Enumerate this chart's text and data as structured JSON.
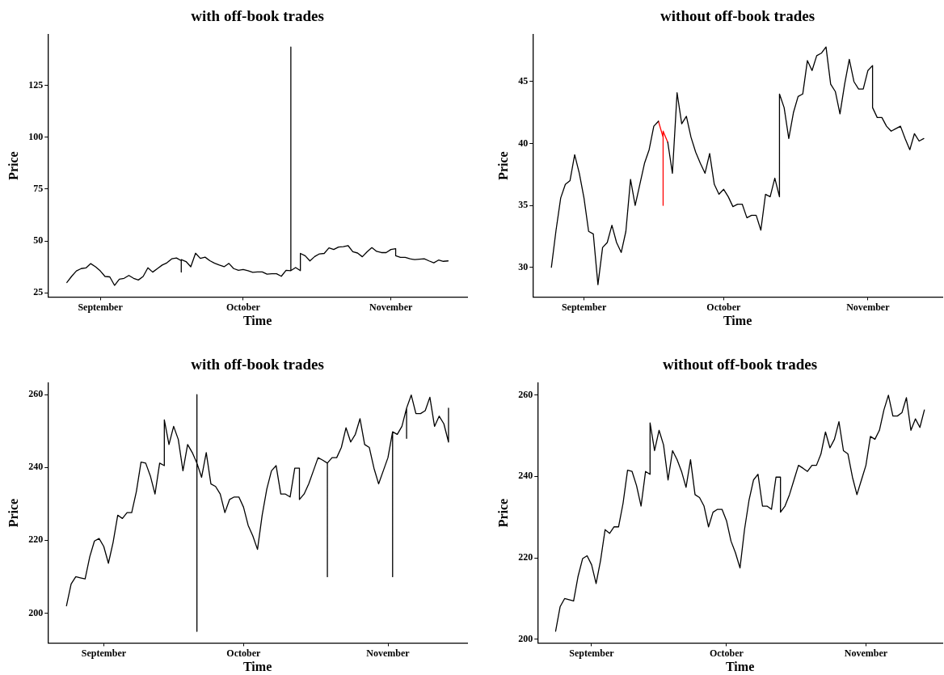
{
  "chart_data": [
    {
      "type": "line",
      "title": "with off-book trades",
      "xlabel": "Time",
      "ylabel": "Price",
      "x": [
        "--08-25",
        "--08-26",
        "--08-27",
        "--08-28",
        "--08-29",
        "--08-30",
        "--08-31",
        "--09-01",
        "--09-02",
        "--09-03",
        "--09-04",
        "--09-05",
        "--09-06",
        "--09-07",
        "--09-08",
        "--09-09",
        "--09-10",
        "--09-11",
        "--09-12",
        "--09-13",
        "--09-14",
        "--09-15",
        "--09-16",
        "--09-17",
        "--09-18",
        "--09-18",
        "--09-18",
        "--09-19",
        "--09-20",
        "--09-21",
        "--09-22",
        "--09-23",
        "--09-24",
        "--09-25",
        "--09-26",
        "--09-27",
        "--09-28",
        "--09-29",
        "--09-30",
        "--10-01",
        "--10-02",
        "--10-03",
        "--10-04",
        "--10-05",
        "--10-06",
        "--10-07",
        "--10-08",
        "--10-09",
        "--10-10",
        "--10-11",
        "--10-11",
        "--10-11",
        "--10-12",
        "--10-13",
        "--10-13",
        "--10-14",
        "--10-15",
        "--10-16",
        "--10-17",
        "--10-18",
        "--10-19",
        "--10-20",
        "--10-21",
        "--10-22",
        "--10-23",
        "--10-24",
        "--10-25",
        "--10-26",
        "--10-27",
        "--10-28",
        "--10-29",
        "--10-30",
        "--10-31",
        "--11-01",
        "--11-02",
        "--11-02",
        "--11-03",
        "--11-04",
        "--11-05",
        "--11-06",
        "--11-07",
        "--11-08",
        "--11-09",
        "--11-10",
        "--11-11",
        "--11-12",
        "--11-13"
      ],
      "series": [
        {
          "color": "#000000",
          "values": [
            30.0,
            33.0,
            35.6,
            36.7,
            37.0,
            39.1,
            37.6,
            35.6,
            32.9,
            32.7,
            28.6,
            31.6,
            32.0,
            33.4,
            32.0,
            31.2,
            32.9,
            37.1,
            35.0,
            36.7,
            38.4,
            39.5,
            41.4,
            41.8,
            40.5,
            35.0,
            41.0,
            40.1,
            37.6,
            44.1,
            41.6,
            42.2,
            40.5,
            39.3,
            38.4,
            37.6,
            39.2,
            36.7,
            35.9,
            36.3,
            35.7,
            34.9,
            35.1,
            35.1,
            34.0,
            34.2,
            34.2,
            33.0,
            35.9,
            35.7,
            143.5,
            35.7,
            37.2,
            35.7,
            44.0,
            42.9,
            40.4,
            42.5,
            43.8,
            44.0,
            46.7,
            45.9,
            47.1,
            47.3,
            47.8,
            44.8,
            44.2,
            42.4,
            44.8,
            46.8,
            45.0,
            44.4,
            44.4,
            45.9,
            46.3,
            42.9,
            42.1,
            42.1,
            41.4,
            41.0,
            41.2,
            41.4,
            40.4,
            39.5,
            40.8,
            40.2,
            40.4
          ]
        }
      ],
      "xlim": [
        "--08-21",
        "--11-17"
      ],
      "xticks": [
        {
          "value": "--09-01",
          "label": "September"
        },
        {
          "value": "--10-01",
          "label": "October"
        },
        {
          "value": "--11-01",
          "label": "November"
        }
      ],
      "ylim": [
        23,
        149.5
      ],
      "yticks": [
        25,
        50,
        75,
        100,
        125
      ]
    },
    {
      "type": "line",
      "title": "without off-book trades",
      "xlabel": "Time",
      "ylabel": "Price",
      "x": [
        "--08-25",
        "--08-26",
        "--08-27",
        "--08-28",
        "--08-29",
        "--08-30",
        "--08-31",
        "--09-01",
        "--09-02",
        "--09-03",
        "--09-04",
        "--09-05",
        "--09-06",
        "--09-07",
        "--09-08",
        "--09-09",
        "--09-10",
        "--09-11",
        "--09-12",
        "--09-13",
        "--09-14",
        "--09-15",
        "--09-16",
        "--09-17",
        "--09-18",
        "--09-19",
        "--09-20",
        "--09-21",
        "--09-22",
        "--09-23",
        "--09-24",
        "--09-25",
        "--09-26",
        "--09-27",
        "--09-28",
        "--09-29",
        "--09-30",
        "--10-01",
        "--10-02",
        "--10-03",
        "--10-04",
        "--10-05",
        "--10-06",
        "--10-07",
        "--10-08",
        "--10-09",
        "--10-10",
        "--10-11",
        "--10-12",
        "--10-13",
        "--10-13",
        "--10-14",
        "--10-15",
        "--10-16",
        "--10-17",
        "--10-18",
        "--10-19",
        "--10-20",
        "--10-21",
        "--10-22",
        "--10-23",
        "--10-24",
        "--10-25",
        "--10-26",
        "--10-27",
        "--10-28",
        "--10-29",
        "--10-30",
        "--10-31",
        "--11-01",
        "--11-02",
        "--11-02",
        "--11-03",
        "--11-04",
        "--11-05",
        "--11-06",
        "--11-07",
        "--11-08",
        "--11-09",
        "--11-10",
        "--11-11",
        "--11-12",
        "--11-13"
      ],
      "series": [
        {
          "color": "#000000",
          "values": [
            30.0,
            33.0,
            35.6,
            36.7,
            37.0,
            39.1,
            37.6,
            35.6,
            32.9,
            32.7,
            28.6,
            31.6,
            32.0,
            33.4,
            32.0,
            31.2,
            32.9,
            37.1,
            35.0,
            36.7,
            38.4,
            39.5,
            41.4,
            41.8,
            null,
            40.1,
            37.6,
            44.1,
            41.6,
            42.2,
            40.5,
            39.3,
            38.4,
            37.6,
            39.2,
            36.7,
            35.9,
            36.3,
            35.7,
            34.9,
            35.1,
            35.1,
            34.0,
            34.2,
            34.2,
            33.0,
            35.9,
            35.7,
            37.2,
            35.7,
            44.0,
            42.9,
            40.4,
            42.5,
            43.8,
            44.0,
            46.7,
            45.9,
            47.1,
            47.3,
            47.8,
            44.8,
            44.2,
            42.4,
            44.8,
            46.8,
            45.0,
            44.4,
            44.4,
            45.9,
            46.3,
            42.9,
            42.1,
            42.1,
            41.4,
            41.0,
            41.2,
            41.4,
            40.4,
            39.5,
            40.8,
            40.2,
            40.4
          ]
        },
        {
          "color": "#ff0000",
          "x": [
            "--09-17",
            "--09-18",
            "--09-18",
            "--09-18",
            "--09-19"
          ],
          "values": [
            41.8,
            40.5,
            35.0,
            41.0,
            40.1
          ]
        }
      ],
      "xlim": [
        "--08-21",
        "--11-17"
      ],
      "xticks": [
        {
          "value": "--09-01",
          "label": "September"
        },
        {
          "value": "--10-01",
          "label": "October"
        },
        {
          "value": "--11-01",
          "label": "November"
        }
      ],
      "ylim": [
        27.6,
        48.8
      ],
      "yticks": [
        30,
        35,
        40,
        45
      ]
    },
    {
      "type": "line",
      "title": "with off-book trades",
      "xlabel": "Time",
      "ylabel": "Price",
      "x": [
        "--08-24",
        "--08-25",
        "--08-26",
        "--08-27",
        "--08-28",
        "--08-29",
        "--08-30",
        "--08-31",
        "--09-01",
        "--09-02",
        "--09-03",
        "--09-04",
        "--09-05",
        "--09-06",
        "--09-07",
        "--09-08",
        "--09-09",
        "--09-10",
        "--09-11",
        "--09-12",
        "--09-13",
        "--09-14",
        "--09-14",
        "--09-15",
        "--09-16",
        "--09-17",
        "--09-18",
        "--09-19",
        "--09-20",
        "--09-21",
        "--09-21",
        "--09-21",
        "--09-21",
        "--09-22",
        "--09-23",
        "--09-24",
        "--09-25",
        "--09-26",
        "--09-27",
        "--09-28",
        "--09-29",
        "--09-30",
        "--10-01",
        "--10-02",
        "--10-03",
        "--10-04",
        "--10-05",
        "--10-06",
        "--10-07",
        "--10-08",
        "--10-09",
        "--10-10",
        "--10-11",
        "--10-12",
        "--10-13",
        "--10-13",
        "--10-14",
        "--10-15",
        "--10-16",
        "--10-17",
        "--10-18",
        "--10-19",
        "--10-19",
        "--10-19",
        "--10-20",
        "--10-21",
        "--10-22",
        "--10-23",
        "--10-24",
        "--10-25",
        "--10-26",
        "--10-27",
        "--10-28",
        "--10-29",
        "--10-30",
        "--10-31",
        "--11-01",
        "--11-02",
        "--11-02",
        "--11-02",
        "--11-03",
        "--11-04",
        "--11-05",
        "--11-05",
        "--11-05",
        "--11-06",
        "--11-07",
        "--11-08",
        "--11-09",
        "--11-10",
        "--11-11",
        "--11-12",
        "--11-13",
        "--11-14",
        "--11-14"
      ],
      "series": [
        {
          "color": "#000000",
          "values": [
            202.0,
            208.0,
            210.0,
            209.7,
            209.4,
            215.5,
            219.8,
            220.5,
            218.3,
            213.7,
            219.4,
            226.9,
            226.0,
            227.6,
            227.6,
            233.4,
            241.5,
            241.2,
            237.7,
            232.7,
            241.2,
            240.5,
            253.1,
            246.3,
            251.3,
            247.7,
            239.1,
            246.3,
            244.1,
            241.2,
            260.0,
            195.0,
            241.2,
            237.3,
            244.1,
            235.5,
            234.8,
            232.7,
            227.6,
            231.2,
            231.9,
            231.9,
            229.1,
            224.1,
            221.2,
            217.5,
            226.9,
            234.1,
            239.1,
            240.5,
            232.7,
            232.7,
            231.9,
            239.8,
            239.8,
            231.2,
            232.7,
            235.5,
            239.1,
            242.7,
            242.0,
            241.2,
            210.0,
            241.2,
            242.7,
            242.7,
            245.5,
            250.9,
            247.0,
            249.1,
            253.4,
            246.3,
            245.5,
            239.8,
            235.5,
            239.1,
            242.7,
            249.8,
            210.0,
            249.8,
            249.1,
            251.3,
            256.3,
            248.0,
            256.3,
            259.9,
            254.8,
            254.8,
            255.6,
            259.3,
            251.3,
            254.1,
            252.0,
            247.0,
            256.3
          ]
        }
      ],
      "xlim": [
        "--08-20",
        "--11-18"
      ],
      "xticks": [
        {
          "value": "--09-01",
          "label": "September"
        },
        {
          "value": "--10-01",
          "label": "October"
        },
        {
          "value": "--11-01",
          "label": "November"
        }
      ],
      "ylim": [
        191.8,
        263.2
      ],
      "yticks": [
        200,
        220,
        240,
        260
      ]
    },
    {
      "type": "line",
      "title": "without off-book trades",
      "xlabel": "Time",
      "ylabel": "Price",
      "x": [
        "--08-24",
        "--08-25",
        "--08-26",
        "--08-27",
        "--08-28",
        "--08-29",
        "--08-30",
        "--08-31",
        "--09-01",
        "--09-02",
        "--09-03",
        "--09-04",
        "--09-05",
        "--09-06",
        "--09-07",
        "--09-08",
        "--09-09",
        "--09-10",
        "--09-11",
        "--09-12",
        "--09-13",
        "--09-14",
        "--09-14",
        "--09-15",
        "--09-16",
        "--09-17",
        "--09-18",
        "--09-19",
        "--09-20",
        "--09-21",
        "--09-22",
        "--09-23",
        "--09-24",
        "--09-25",
        "--09-26",
        "--09-27",
        "--09-28",
        "--09-29",
        "--09-30",
        "--10-01",
        "--10-02",
        "--10-03",
        "--10-04",
        "--10-05",
        "--10-06",
        "--10-07",
        "--10-08",
        "--10-09",
        "--10-10",
        "--10-11",
        "--10-12",
        "--10-13",
        "--10-13",
        "--10-14",
        "--10-15",
        "--10-16",
        "--10-17",
        "--10-18",
        "--10-19",
        "--10-20",
        "--10-21",
        "--10-22",
        "--10-23",
        "--10-24",
        "--10-25",
        "--10-26",
        "--10-27",
        "--10-28",
        "--10-29",
        "--10-30",
        "--10-31",
        "--11-01",
        "--11-02",
        "--11-03",
        "--11-04",
        "--11-05",
        "--11-06",
        "--11-07",
        "--11-08",
        "--11-09",
        "--11-10",
        "--11-11",
        "--11-12",
        "--11-13",
        "--11-14"
      ],
      "series": [
        {
          "color": "#000000",
          "values": [
            202.0,
            208.0,
            210.0,
            209.7,
            209.4,
            215.5,
            219.8,
            220.5,
            218.3,
            213.7,
            219.4,
            226.9,
            226.0,
            227.6,
            227.6,
            233.4,
            241.5,
            241.2,
            237.7,
            232.7,
            241.2,
            240.5,
            253.1,
            246.3,
            251.3,
            247.7,
            239.1,
            246.3,
            244.1,
            241.2,
            237.3,
            244.1,
            235.5,
            234.8,
            232.7,
            227.6,
            231.2,
            231.9,
            231.9,
            229.1,
            224.1,
            221.2,
            217.5,
            226.9,
            234.1,
            239.1,
            240.5,
            232.7,
            232.7,
            231.9,
            239.8,
            239.8,
            231.2,
            232.7,
            235.5,
            239.1,
            242.7,
            242.0,
            241.2,
            242.7,
            242.7,
            245.5,
            250.9,
            247.0,
            249.1,
            253.4,
            246.3,
            245.5,
            239.8,
            235.5,
            239.1,
            242.7,
            249.8,
            249.1,
            251.3,
            256.3,
            259.9,
            254.8,
            254.8,
            255.6,
            259.3,
            251.3,
            254.1,
            252.0,
            256.3
          ]
        }
      ],
      "xlim": [
        "--08-20",
        "--11-18"
      ],
      "xticks": [
        {
          "value": "--09-01",
          "label": "September"
        },
        {
          "value": "--10-01",
          "label": "October"
        },
        {
          "value": "--11-01",
          "label": "November"
        }
      ],
      "ylim": [
        199.1,
        262.9
      ],
      "yticks": [
        200,
        220,
        240,
        260
      ]
    }
  ]
}
